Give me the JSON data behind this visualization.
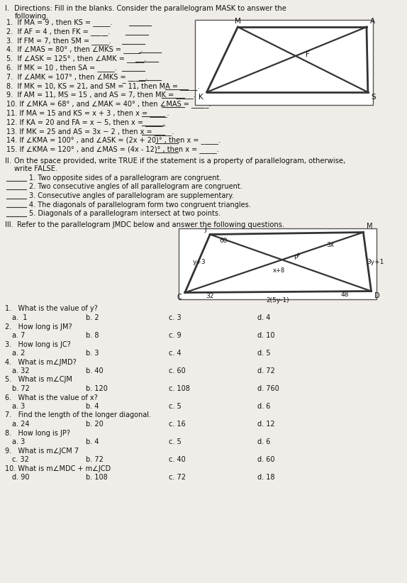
{
  "bg_color": "#f0ede8",
  "text_color": "#1a1a1a",
  "part_I_items": [
    "1.  If MA = 9 , then KS = _____.",
    "2.  If AF = 4 , then FK = _____.",
    "3.  If FM = 7, then SM = _____.",
    "4.  If ∠MAS = 80° , then ∠MKS = _____.",
    "5.  If ∠ASK = 125° , then ∠AMK = _____.",
    "6.  If MK = 10 , then SA = _____.",
    "7.  If ∠AMK = 107° , then ∠MKS = _____.",
    "8.  If MK = 10, KS = 21, and SM = ̅ 11, then MA = _____.",
    "9.  If AM = 11, MS = 15 , and AS = 7, then MK = _____.",
    "10. If ∠MKA = 68° , and ∠MAK = 40° , then ∠MAS = _____.",
    "11. If MA = 15 and KS = x + 3 , then x = _____.",
    "12. If KA = 20 and FA = x − 5, then x = _____.",
    "13. If MK = 25 and AS = 3x − 2 , then x = _____.",
    "14. If ∠KMA = 100° , and ∠ASK = (2x + 20)° , then x = _____.",
    "15. If ∠KMA = 120° , and ∠MAS = (4x - 12)° , then x = _____."
  ],
  "part_II_items": [
    "1. Two opposite sides of a parallelogram are congruent.",
    "2. Two consecutive angles of all parallelogram are congruent.",
    "3. Consecutive angles of parallelogram are supplementary.",
    "4. The diagonals of parallelogram form two congruent triangles.",
    "5. Diagonals of a parallelogram intersect at two points."
  ],
  "part_III_q": [
    "1.   What is the value of y?",
    "2.   How long is JM?",
    "3.   How long is JC?",
    "4.   What is m∠JMD?",
    "5.   What is m∠CJM",
    "6.   What is the value of x?",
    "7.   Find the length of the longer diagonal.",
    "8.   How long is JP?",
    "9.   What is m∠JCM 7",
    "10. What is m∠MDC + m∠JCD"
  ],
  "part_III_opts": [
    [
      "a.  1",
      "b. 2",
      "c. 3",
      "d. 4"
    ],
    [
      "a. 7",
      "b. 8",
      "c. 9",
      "d. 10"
    ],
    [
      "a. 2",
      "b. 3",
      "c. 4",
      "d. 5"
    ],
    [
      "a. 32",
      "b. 40",
      "c. 60",
      "d. 72"
    ],
    [
      "b. 72",
      "b. 120",
      "c. 108",
      "d. 760"
    ],
    [
      "a. 3",
      "b. 4",
      "c. 5",
      "d. 6"
    ],
    [
      "a. 24",
      "b. 20",
      "c. 16",
      "d. 12"
    ],
    [
      "a. 3",
      "b. 4",
      "c. 5",
      "d. 6"
    ],
    [
      "c. 32",
      "b. 72",
      "c. 40",
      "d. 60"
    ],
    [
      "d. 90",
      "b. 108",
      "c. 72",
      "d. 18"
    ]
  ]
}
